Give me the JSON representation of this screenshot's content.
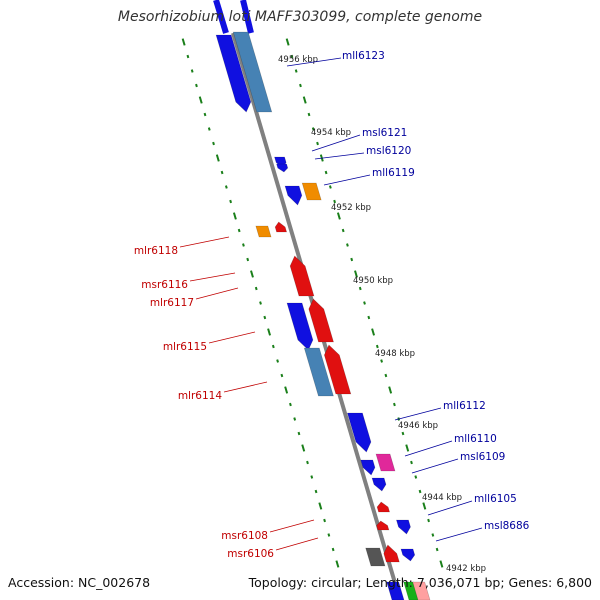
{
  "title": "Mesorhizobium loti MAFF303099, complete genome",
  "footer": {
    "accession_label": "Accession: NC_002678",
    "summary": "Topology: circular; Length: 7,036,071 bp; Genes: 6,800"
  },
  "colors": {
    "backbone": "#808080",
    "tick": "#1a7f1a",
    "reverse_gene": "#1010e0",
    "forward_gene": "#e01010",
    "steel_gene": "#4682b4",
    "orange_gene": "#f08c00",
    "magenta_gene": "#e0289a",
    "gray_gene": "#555555",
    "left_label": "#c00000",
    "right_label": "#00009c"
  },
  "kbp_markers": [
    "4956 kbp",
    "4954 kbp",
    "4952 kbp",
    "4950 kbp",
    "4948 kbp",
    "4946 kbp",
    "4944 kbp",
    "4942 kbp"
  ],
  "gene_labels_right": [
    "mll6123",
    "msl6121",
    "msl6120",
    "mll6119",
    "mll6112",
    "mll6110",
    "msl6109",
    "mll6105",
    "msl8686"
  ],
  "gene_labels_left": [
    "mlr6118",
    "msr6116",
    "mlr6117",
    "mlr6115",
    "mlr6114",
    "msr6108",
    "msr6106"
  ]
}
